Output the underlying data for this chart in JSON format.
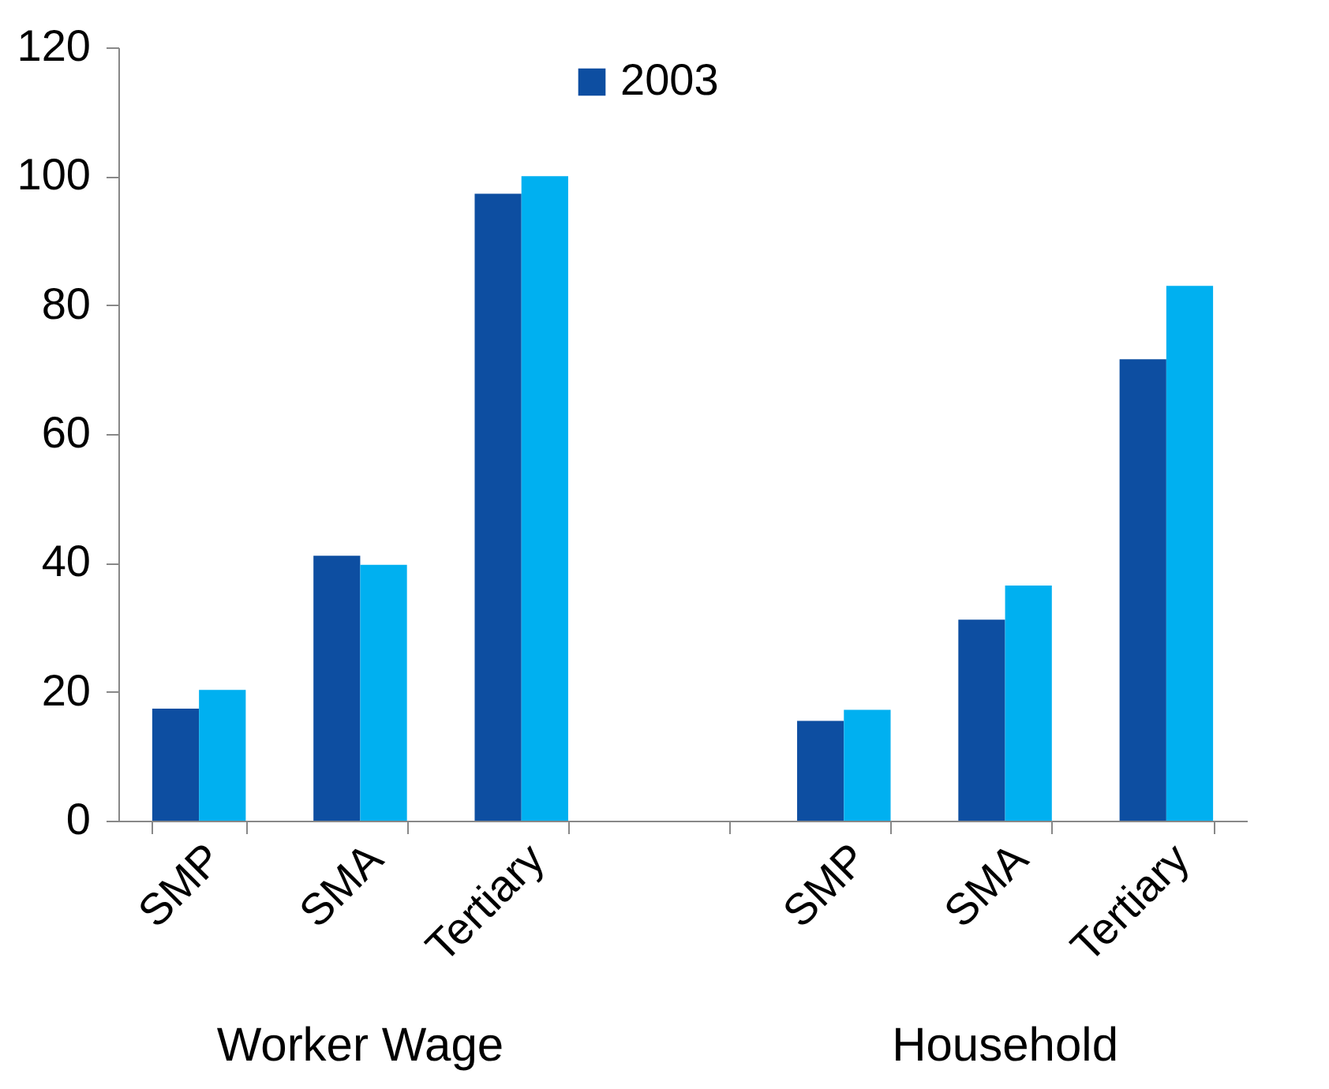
{
  "chart_data": {
    "type": "bar",
    "categories": [
      "SMP",
      "SMA",
      "Tertiary",
      null,
      "SMP",
      "SMA",
      "Tertiary"
    ],
    "series": [
      {
        "name": "2003",
        "color": "#0d4ea1",
        "values": [
          17.4,
          41.1,
          97.3,
          null,
          15.5,
          31.2,
          71.6
        ]
      },
      {
        "color": "#00b0f0",
        "values": [
          20.3,
          39.7,
          100,
          null,
          17.2,
          36.5,
          83
        ]
      }
    ],
    "ylim": [
      0,
      120
    ],
    "yticks": [
      0,
      20,
      40,
      60,
      80,
      100,
      120
    ],
    "grid": false,
    "legend": "top",
    "annotations": [
      "Worker Wage",
      "Household"
    ]
  }
}
